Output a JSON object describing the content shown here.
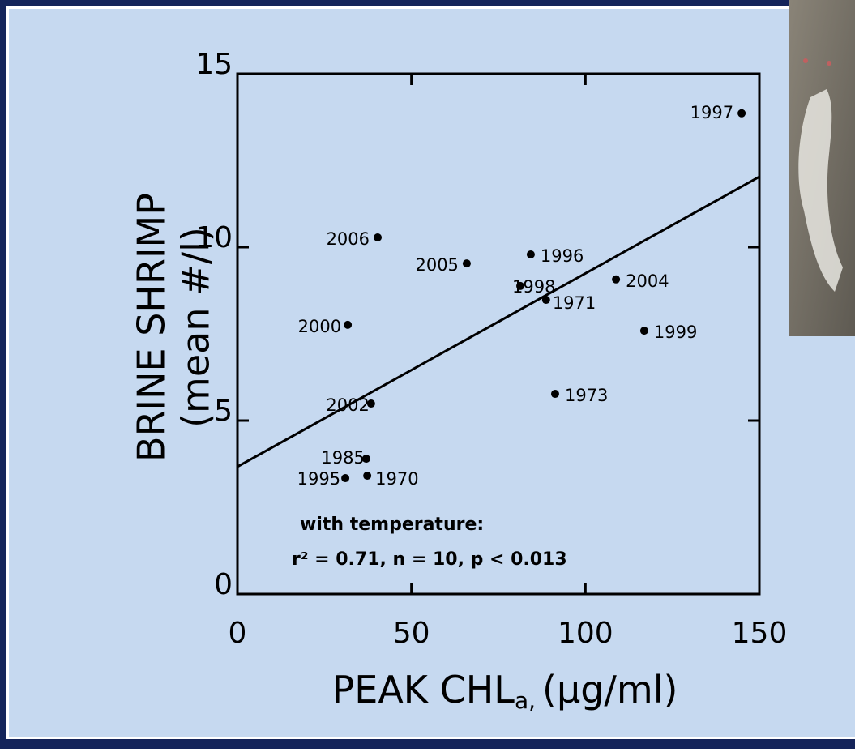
{
  "chart_data": {
    "type": "scatter",
    "xlabel": {
      "main": "PEAK CHL",
      "sub": "a,",
      "unit": "(µg/ml)"
    },
    "ylabel": [
      "BRINE SHRIMP",
      "(mean #/l)"
    ],
    "labels": [
      "1997",
      "2006",
      "2005",
      "1996",
      "1998",
      "2004",
      "1971",
      "1999",
      "2000",
      "2002",
      "1973",
      "1985",
      "1970",
      "1995"
    ],
    "x": [
      144.9,
      40.3,
      65.9,
      84.3,
      81.3,
      108.8,
      88.7,
      116.9,
      31.7,
      38.4,
      91.3,
      37.0,
      37.3,
      31.0
    ],
    "values": [
      13.86,
      10.28,
      9.53,
      9.79,
      8.88,
      9.07,
      8.48,
      7.59,
      7.76,
      5.49,
      5.77,
      3.9,
      3.41,
      3.34
    ],
    "color": "#000000",
    "trendline": {
      "x": [
        0,
        150
      ],
      "y": [
        3.67,
        12.03
      ]
    },
    "annotation": [
      "with temperature:",
      "r² = 0.71, n = 10, p < 0.013"
    ],
    "xlim": [
      0,
      150
    ],
    "xticks": [
      0,
      50,
      100,
      150
    ],
    "ylim": [
      0,
      15
    ],
    "yticks": [
      0,
      5,
      10,
      15
    ]
  }
}
